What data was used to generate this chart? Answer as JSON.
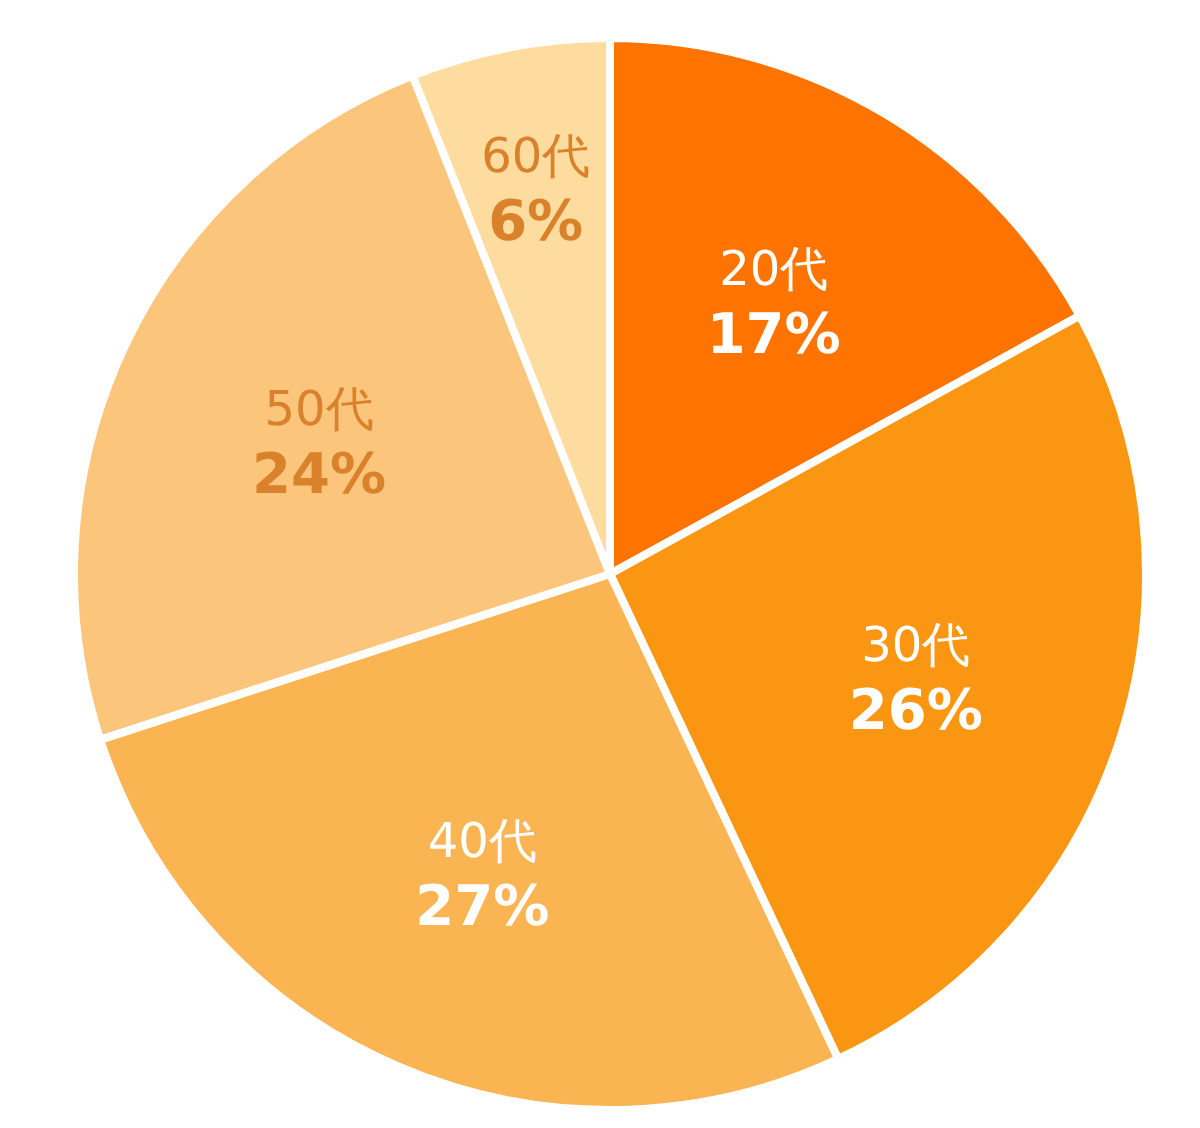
{
  "chart_data": {
    "type": "pie",
    "categories": [
      "20代",
      "30代",
      "40代",
      "50代",
      "60代"
    ],
    "values": [
      17,
      26,
      27,
      24,
      6
    ],
    "colors": [
      "#ff7400",
      "#fb9612",
      "#fbb452",
      "#fbc57b",
      "#fedb9f"
    ],
    "value_labels": [
      "17%",
      "26%",
      "27%",
      "24%",
      "6%"
    ],
    "legend": false
  }
}
